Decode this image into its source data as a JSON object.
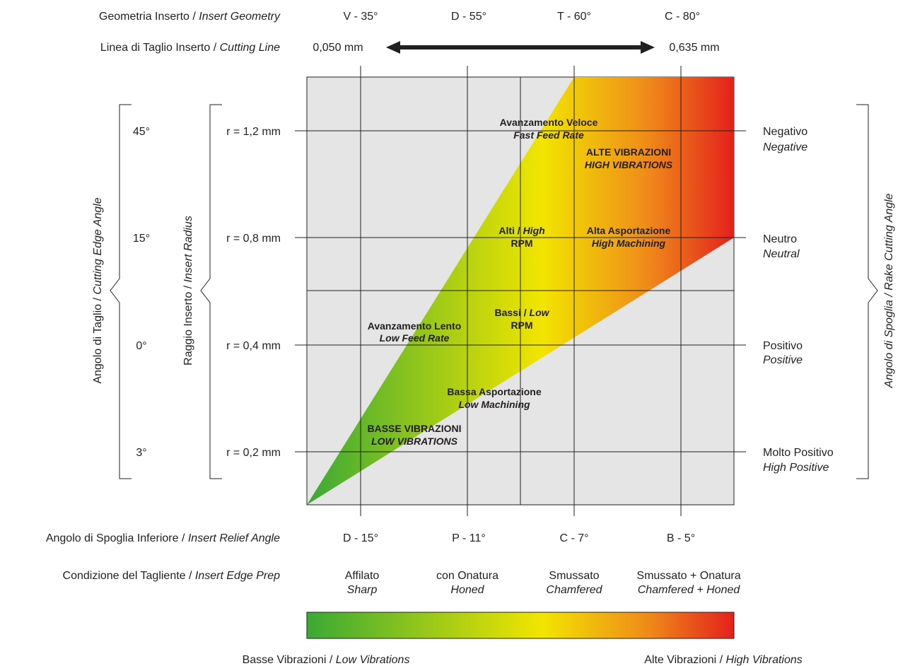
{
  "top_rows": {
    "geometry": {
      "label_it": "Geometria Inserto",
      "label_en": "Insert Geometry",
      "values": [
        "V - 35°",
        "D - 55°",
        "T - 60°",
        "C - 80°"
      ]
    },
    "cutting_line": {
      "label_it": "Linea di Taglio Inserto",
      "label_en": "Cutting Line",
      "min": "0,050 mm",
      "max": "0,635 mm"
    }
  },
  "left_axes": {
    "cutting_edge_angle": {
      "title_it": "Angolo di Taglio",
      "title_en": "Cutting Edge Angle",
      "values": [
        "45°",
        "15°",
        "0°",
        "3°"
      ]
    },
    "insert_radius": {
      "title_it": "Raggio Inserto",
      "title_en": "Insert Radius",
      "values": [
        "r = 1,2 mm",
        "r = 0,8 mm",
        "r = 0,4 mm",
        "r = 0,2 mm"
      ]
    }
  },
  "right_axis": {
    "title_it": "Angolo di Spoglia",
    "title_en": "Rake Cutting Angle",
    "values": [
      {
        "it": "Negativo",
        "en": "Negative"
      },
      {
        "it": "Neutro",
        "en": "Neutral"
      },
      {
        "it": "Positivo",
        "en": "Positive"
      },
      {
        "it": "Molto Positivo",
        "en": "High Positive"
      }
    ]
  },
  "bottom_rows": {
    "relief_angle": {
      "label_it": "Angolo di Spoglia Inferiore",
      "label_en": "Insert Relief Angle",
      "values": [
        "D - 15°",
        "P - 11°",
        "C - 7°",
        "B - 5°"
      ]
    },
    "edge_prep": {
      "label_it": "Condizione del Tagliente",
      "label_en": "Insert Edge Prep",
      "values": [
        {
          "it": "Affilato",
          "en": "Sharp"
        },
        {
          "it": "con Onatura",
          "en": "Honed"
        },
        {
          "it": "Smussato",
          "en": "Chamfered"
        },
        {
          "it": "Smussato + Onatura",
          "en": "Chamfered + Honed"
        }
      ]
    }
  },
  "zones": {
    "fast_feed": {
      "it": "Avanzamento Veloce",
      "en": "Fast Feed Rate"
    },
    "high_vib": {
      "it": "ALTE VIBRAZIONI",
      "en": "HIGH VIBRATIONS"
    },
    "high_rpm": {
      "it": "Alti / ",
      "en": "High",
      "rpm": "RPM"
    },
    "high_mach": {
      "it": "Alta Asportazione",
      "en": "High Machining"
    },
    "low_rpm": {
      "it": "Bassi / ",
      "en": "Low",
      "rpm": "RPM"
    },
    "slow_feed": {
      "it": "Avanzamento Lento",
      "en": "Low Feed Rate"
    },
    "low_mach": {
      "it": "Bassa Asportazione",
      "en": "Low Machining"
    },
    "low_vib": {
      "it": "BASSE VIBRAZIONI",
      "en": "LOW VIBRATIONS"
    }
  },
  "legend": {
    "low_it": "Basse Vibrazioni / ",
    "low_en": "Low Vibrations",
    "high_it": "Alte Vibrazioni / ",
    "high_en": "High Vibrations"
  },
  "colors": {
    "green": "#3aa935",
    "yellow": "#f2e500",
    "orange": "#ef8a1a",
    "red": "#e4201c",
    "panel": "#e5e5e5",
    "line": "#231f20"
  }
}
